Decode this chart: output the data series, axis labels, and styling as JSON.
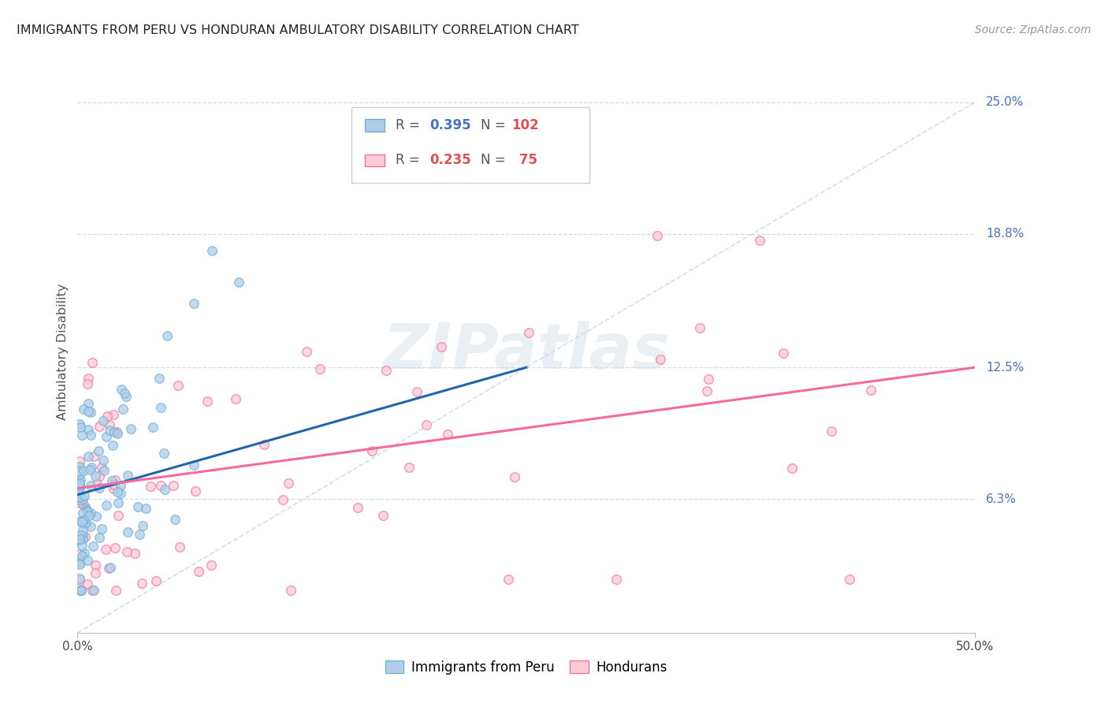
{
  "title": "IMMIGRANTS FROM PERU VS HONDURAN AMBULATORY DISABILITY CORRELATION CHART",
  "source": "Source: ZipAtlas.com",
  "ylabel": "Ambulatory Disability",
  "ytick_labels": [
    "6.3%",
    "12.5%",
    "18.8%",
    "25.0%"
  ],
  "ytick_values": [
    0.063,
    0.125,
    0.188,
    0.25
  ],
  "xmin": 0.0,
  "xmax": 0.5,
  "ymin": 0.0,
  "ymax": 0.265,
  "watermark": "ZIPatlas",
  "peru_color": "#aecde8",
  "peru_edge": "#6baed6",
  "honduran_color": "#ffccd5",
  "honduran_edge": "#f768a1",
  "trend_peru_color": "#2166ac",
  "trend_honduran_color": "#f768a1",
  "diagonal_color": "#c8d8e8",
  "legend_R1": "0.395",
  "legend_N1": "102",
  "legend_R2": "0.235",
  "legend_N2": "75",
  "legend_color_blue": "#4472c4",
  "legend_color_red": "#e05050",
  "peru_label": "Immigrants from Peru",
  "honduran_label": "Hondurans"
}
